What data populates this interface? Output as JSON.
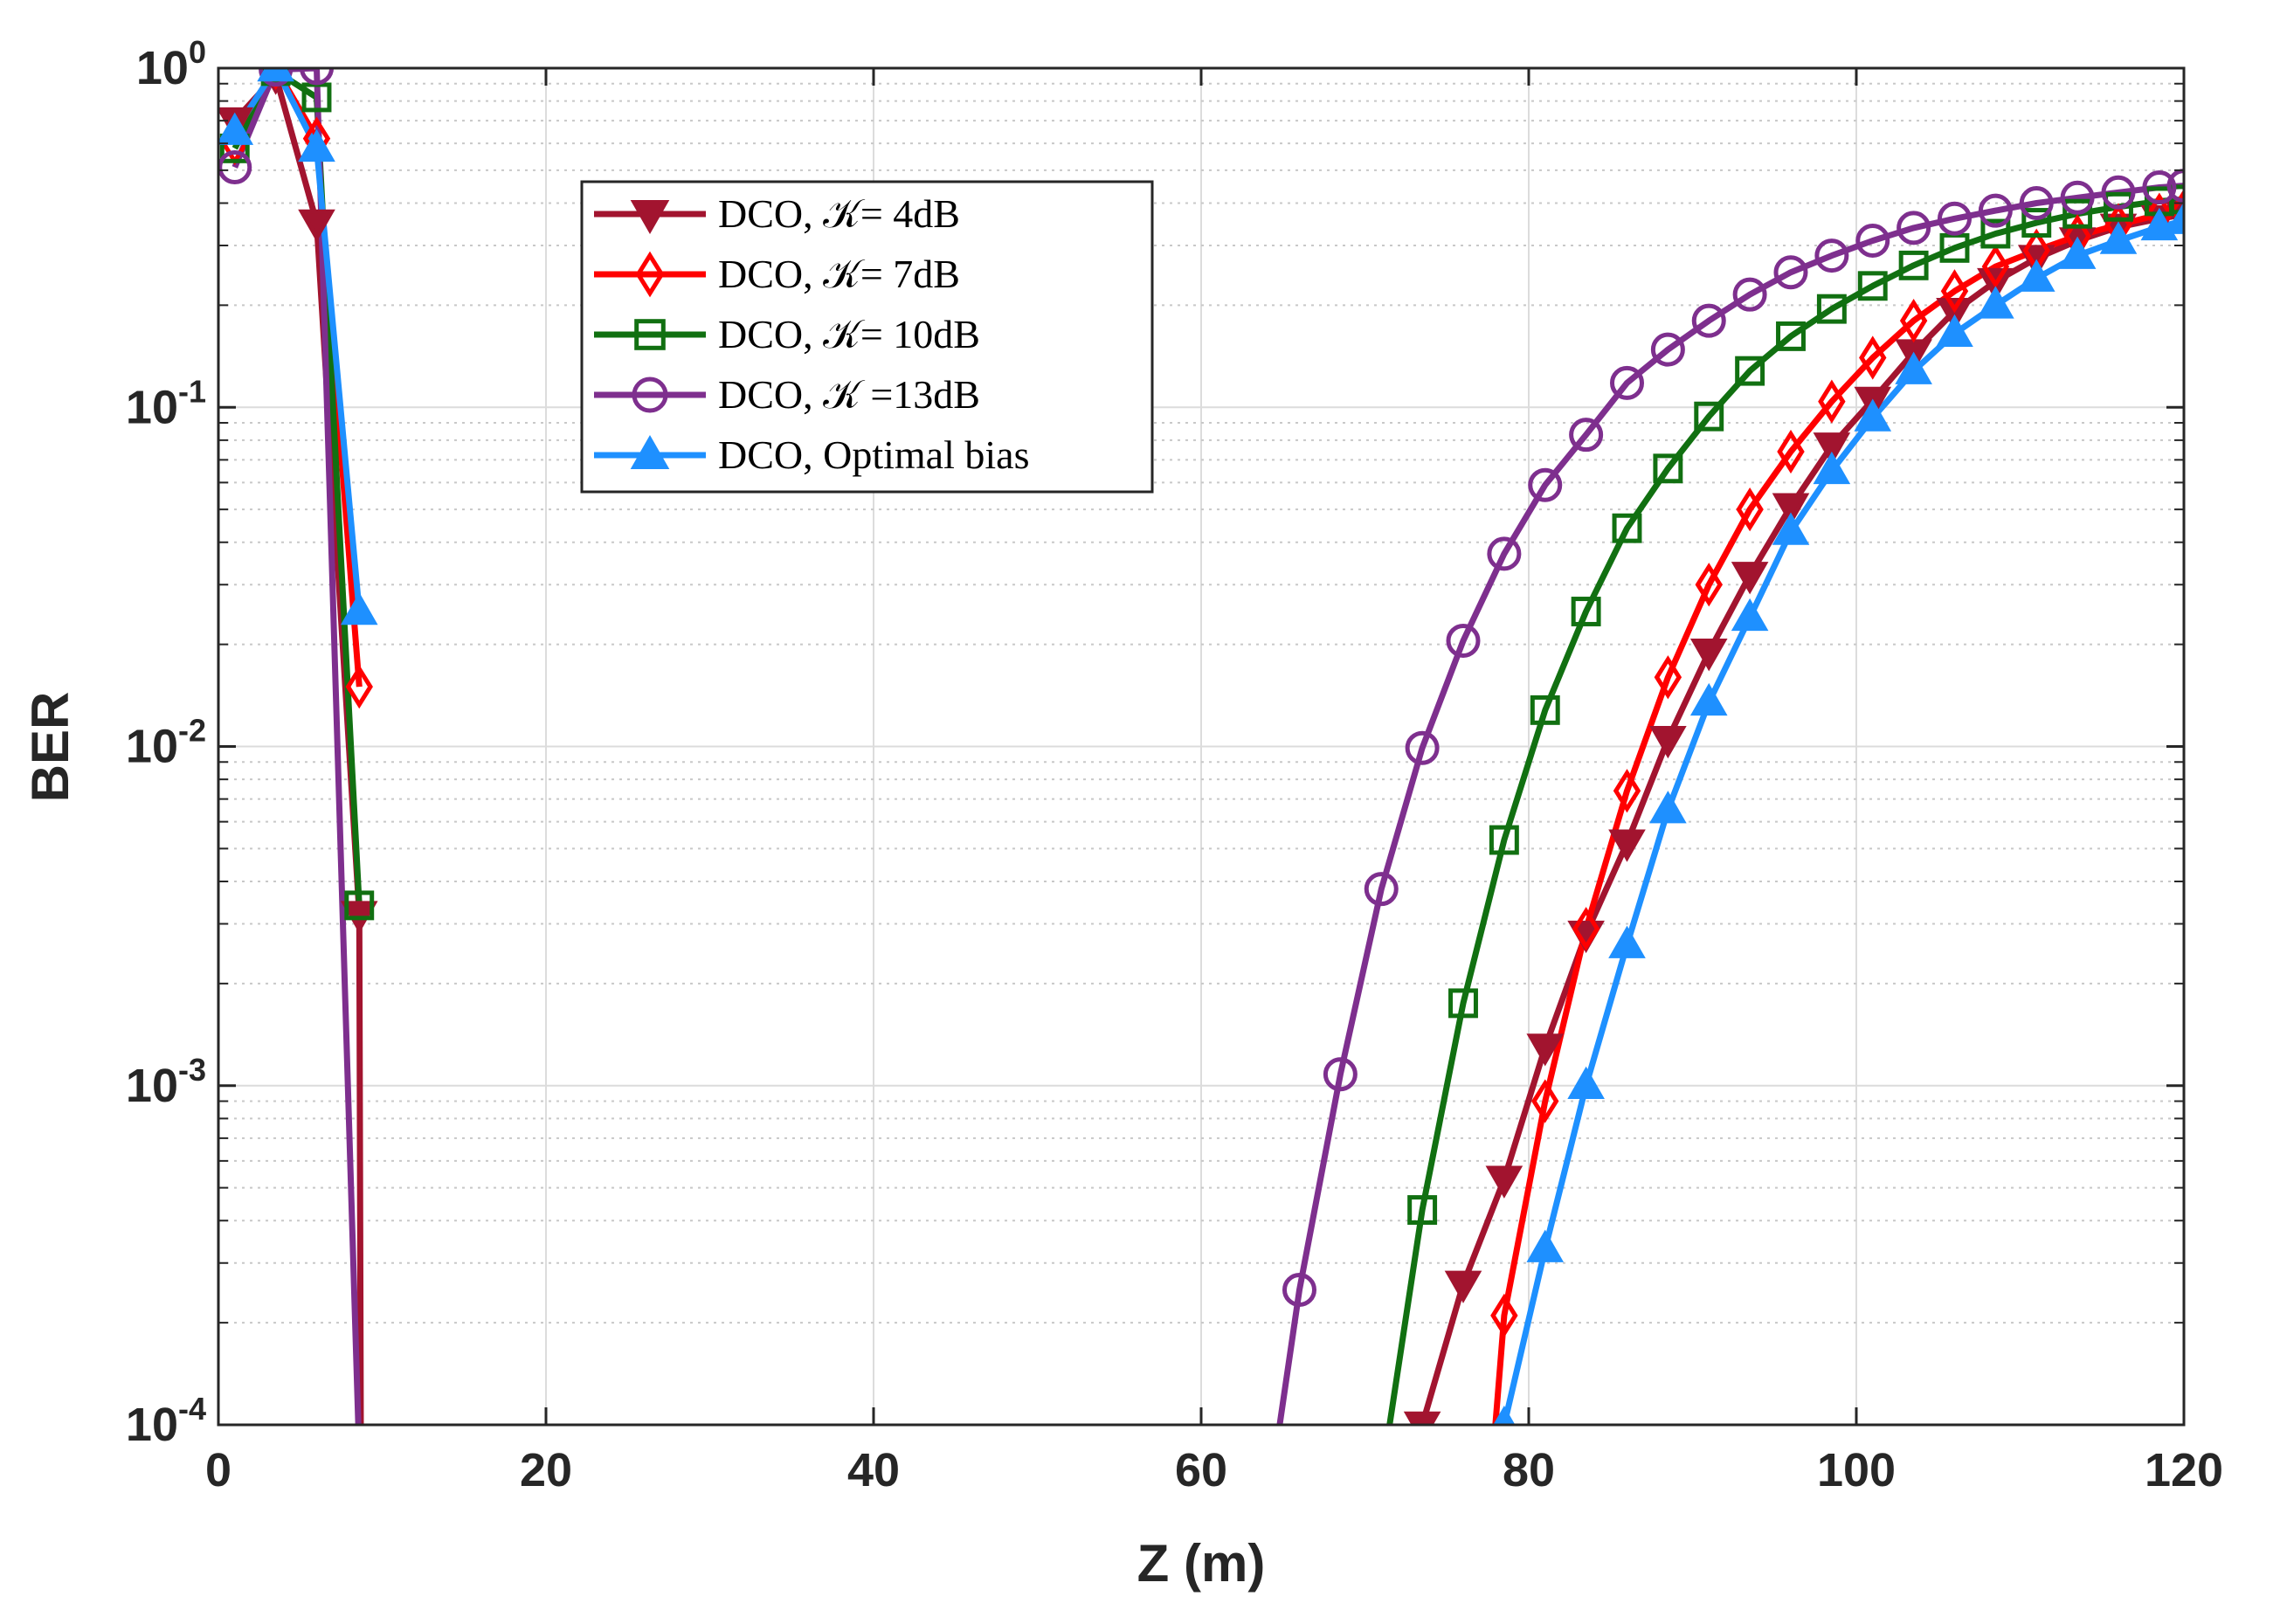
{
  "chart_data": {
    "type": "line",
    "title": "",
    "xlabel": "Z (m)",
    "ylabel": "BER",
    "yscale": "log",
    "xlim": [
      0,
      120
    ],
    "ylim": [
      0.0001,
      1
    ],
    "grid": true,
    "legend_position": "top-left-center",
    "x_ticks": [
      {
        "value": 0,
        "label": "0"
      },
      {
        "value": 20,
        "label": "20"
      },
      {
        "value": 40,
        "label": "40"
      },
      {
        "value": 60,
        "label": "60"
      },
      {
        "value": 80,
        "label": "80"
      },
      {
        "value": 100,
        "label": "100"
      },
      {
        "value": 120,
        "label": "120"
      }
    ],
    "y_ticks": [
      {
        "value": 1,
        "base": "10",
        "exp": "0"
      },
      {
        "value": 0.1,
        "base": "10",
        "exp": "-1"
      },
      {
        "value": 0.01,
        "base": "10",
        "exp": "-2"
      },
      {
        "value": 0.001,
        "base": "10",
        "exp": "-3"
      },
      {
        "value": 0.0001,
        "base": "10",
        "exp": "-4"
      }
    ],
    "series": [
      {
        "name": "DCO, 𝒦= 4dB",
        "color": "#a2142f",
        "marker": "triangle-down",
        "segments": [
          [
            [
              1,
              0.7
            ],
            [
              3.5,
              0.95
            ],
            [
              6,
              0.35
            ],
            [
              8.6,
              0.0032
            ],
            [
              8.7,
              8e-05
            ]
          ],
          [
            [
              72,
              8e-05
            ],
            [
              73.5,
              0.0001
            ],
            [
              76,
              0.00026
            ],
            [
              78.5,
              0.00053
            ],
            [
              81,
              0.0013
            ],
            [
              83.5,
              0.0028
            ],
            [
              86,
              0.0052
            ],
            [
              88.5,
              0.0105
            ],
            [
              91,
              0.019
            ],
            [
              93.5,
              0.032
            ],
            [
              96,
              0.051
            ],
            [
              98.5,
              0.077
            ],
            [
              101,
              0.105
            ],
            [
              103.5,
              0.145
            ],
            [
              106,
              0.192
            ],
            [
              108.5,
              0.235
            ],
            [
              111,
              0.275
            ],
            [
              113.5,
              0.31
            ],
            [
              116,
              0.34
            ],
            [
              118.5,
              0.36
            ],
            [
              120,
              0.37
            ]
          ]
        ]
      },
      {
        "name": "DCO, 𝒦= 7dB",
        "color": "#ff0000",
        "marker": "diamond",
        "segments": [
          [
            [
              1,
              0.6
            ],
            [
              3.5,
              1.0
            ],
            [
              6,
              0.62
            ],
            [
              8.6,
              0.015
            ]
          ],
          [
            [
              77.8,
              8e-05
            ],
            [
              78.5,
              0.00021
            ],
            [
              81,
              0.0009
            ],
            [
              83.5,
              0.0029
            ],
            [
              86,
              0.0074
            ],
            [
              88.5,
              0.016
            ],
            [
              91,
              0.03
            ],
            [
              93.5,
              0.05
            ],
            [
              96,
              0.074
            ],
            [
              98.5,
              0.104
            ],
            [
              101,
              0.14
            ],
            [
              103.5,
              0.18
            ],
            [
              106,
              0.22
            ],
            [
              108.5,
              0.26
            ],
            [
              111,
              0.29
            ],
            [
              113.5,
              0.32
            ],
            [
              116,
              0.345
            ],
            [
              118.5,
              0.37
            ],
            [
              120,
              0.38
            ]
          ]
        ]
      },
      {
        "name": "DCO, 𝒦= 10dB",
        "color": "#117011",
        "marker": "square",
        "segments": [
          [
            [
              1,
              0.58
            ],
            [
              3.5,
              0.98
            ],
            [
              6,
              0.82
            ],
            [
              8.6,
              0.0034
            ]
          ],
          [
            [
              71.2,
              8e-05
            ],
            [
              73.5,
              0.00043
            ],
            [
              76,
              0.00175
            ],
            [
              78.5,
              0.0053
            ],
            [
              81,
              0.0128
            ],
            [
              83.5,
              0.025
            ],
            [
              86,
              0.044
            ],
            [
              88.5,
              0.066
            ],
            [
              91,
              0.094
            ],
            [
              93.5,
              0.128
            ],
            [
              96,
              0.162
            ],
            [
              98.5,
              0.195
            ],
            [
              101,
              0.228
            ],
            [
              103.5,
              0.262
            ],
            [
              106,
              0.295
            ],
            [
              108.5,
              0.325
            ],
            [
              111,
              0.35
            ],
            [
              113.5,
              0.372
            ],
            [
              116,
              0.39
            ],
            [
              118.5,
              0.405
            ],
            [
              120,
              0.41
            ]
          ]
        ]
      },
      {
        "name": "DCO, 𝒦 =13dB",
        "color": "#7e2f8e",
        "marker": "circle",
        "segments": [
          [
            [
              1,
              0.51
            ],
            [
              3.5,
              0.99
            ],
            [
              6,
              1.0
            ],
            [
              8.6,
              8e-05
            ]
          ],
          [
            [
              64.5,
              8e-05
            ],
            [
              66,
              0.00025
            ],
            [
              68.5,
              0.00108
            ],
            [
              71,
              0.0038
            ],
            [
              73.5,
              0.0099
            ],
            [
              76,
              0.0205
            ],
            [
              78.5,
              0.037
            ],
            [
              81,
              0.059
            ],
            [
              83.5,
              0.083
            ],
            [
              86,
              0.118
            ],
            [
              88.5,
              0.148
            ],
            [
              91,
              0.18
            ],
            [
              93.5,
              0.215
            ],
            [
              96,
              0.25
            ],
            [
              98.5,
              0.28
            ],
            [
              101,
              0.31
            ],
            [
              103.5,
              0.338
            ],
            [
              106,
              0.36
            ],
            [
              108.5,
              0.38
            ],
            [
              111,
              0.4
            ],
            [
              113.5,
              0.415
            ],
            [
              116,
              0.43
            ],
            [
              118.5,
              0.445
            ],
            [
              120,
              0.45
            ]
          ]
        ]
      },
      {
        "name": "DCO, Optimal bias",
        "color": "#1e90ff",
        "marker": "triangle-up",
        "segments": [
          [
            [
              1,
              0.65
            ],
            [
              3.5,
              1.0
            ],
            [
              6,
              0.58
            ],
            [
              8.6,
              0.025
            ]
          ],
          [
            [
              78.5,
              0.0001
            ],
            [
              81,
              0.00033
            ],
            [
              83.5,
              0.001
            ],
            [
              86,
              0.0026
            ],
            [
              88.5,
              0.0065
            ],
            [
              91,
              0.0135
            ],
            [
              93.5,
              0.024
            ],
            [
              96,
              0.043
            ],
            [
              98.5,
              0.065
            ],
            [
              101,
              0.093
            ],
            [
              103.5,
              0.128
            ],
            [
              106,
              0.165
            ],
            [
              108.5,
              0.2
            ],
            [
              111,
              0.24
            ],
            [
              113.5,
              0.28
            ],
            [
              116,
              0.31
            ],
            [
              118.5,
              0.34
            ],
            [
              120,
              0.355
            ]
          ]
        ]
      }
    ]
  }
}
